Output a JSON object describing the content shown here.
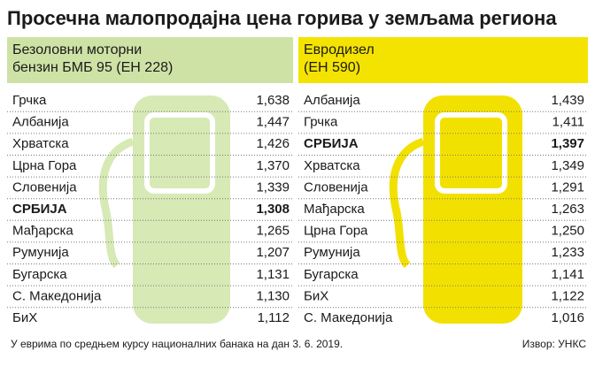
{
  "title": "Просечна малопродајна цена горива у земљама региона",
  "tables": [
    {
      "header": [
        "Безоловни моторни",
        "бензин БМБ 95 (ЕН 228)"
      ],
      "rows": [
        [
          "Грчка",
          "1,638"
        ],
        [
          "Албанија",
          "1,447"
        ],
        [
          "Хрватска",
          "1,426"
        ],
        [
          "Црна Гора",
          "1,370"
        ],
        [
          "Словенија",
          "1,339"
        ],
        [
          "СРБИЈА",
          "1,308"
        ],
        [
          "Мађарска",
          "1,265"
        ],
        [
          "Румунија",
          "1,207"
        ],
        [
          "Бугарска",
          "1,131"
        ],
        [
          "С. Македонија",
          "1,130"
        ],
        [
          "БиХ",
          "1,112"
        ]
      ]
    },
    {
      "header": [
        "Евродизел",
        "(ЕН 590)"
      ],
      "rows": [
        [
          "Албанија",
          "1,439"
        ],
        [
          "Грчка",
          "1,411"
        ],
        [
          "СРБИЈА",
          "1,397"
        ],
        [
          "Хрватска",
          "1,349"
        ],
        [
          "Словенија",
          "1,291"
        ],
        [
          "Мађарска",
          "1,263"
        ],
        [
          "Црна Гора",
          "1,250"
        ],
        [
          "Румунија",
          "1,233"
        ],
        [
          "Бугарска",
          "1,141"
        ],
        [
          "БиХ",
          "1,122"
        ],
        [
          "С. Македонија",
          "1,016"
        ]
      ]
    }
  ],
  "footer": {
    "note": "У еврима по средњем курсу националних банака на дан 3. 6. 2019.",
    "source": "Извор: УНКС"
  }
}
